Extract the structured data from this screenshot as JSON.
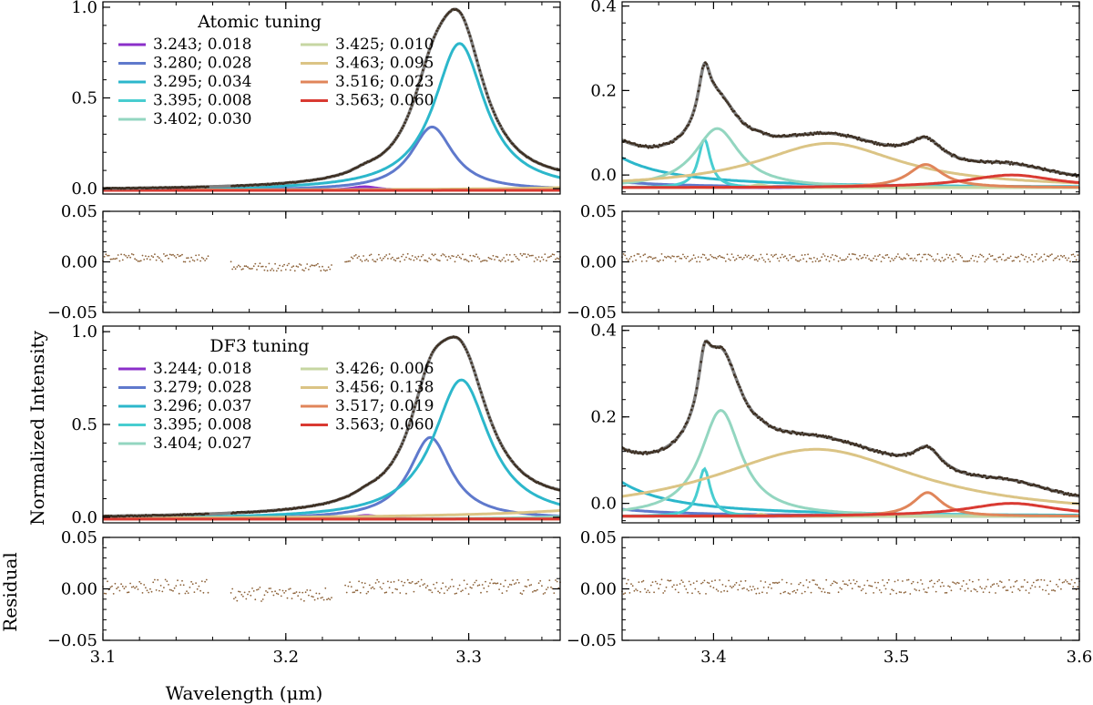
{
  "chart_data": {
    "type": "line",
    "xlabel": "Wavelength (μm)",
    "ylabel": "Normalized Intensity",
    "residual_ylabel": "Residual",
    "x_ranges": {
      "left": [
        3.1,
        3.35
      ],
      "right": [
        3.35,
        3.6
      ]
    },
    "x_ticks": {
      "left": [
        3.1,
        3.2,
        3.3
      ],
      "left_labels": [
        "3.1",
        "3.2",
        "3.3"
      ],
      "right": [
        3.4,
        3.5,
        3.6
      ],
      "right_labels": [
        "3.4",
        "3.5",
        "3.6"
      ]
    },
    "residual_ylim": [
      -0.05,
      0.05
    ],
    "residual_ticks": [
      -0.05,
      0.0,
      0.05
    ],
    "residual_tick_labels": [
      "−0.05",
      "0.00",
      "0.05"
    ],
    "rows": [
      {
        "title": "Atomic tuning",
        "ylim_left": [
          -0.03,
          1.03
        ],
        "ylim_right": [
          -0.045,
          0.41
        ],
        "yticks_left": [
          0.0,
          0.5,
          1.0
        ],
        "yticks_left_labels": [
          "0.0",
          "0.5",
          "1.0"
        ],
        "yticks_right": [
          0.0,
          0.2,
          0.4
        ],
        "yticks_right_labels": [
          "0.0",
          "0.2",
          "0.4"
        ],
        "baseline_left": -0.01,
        "baseline_right": -0.03,
        "residual_level": 0.004,
        "residual_noise": 0.004,
        "components": [
          {
            "label": "3.243; 0.018",
            "center": 3.243,
            "fwhm": 0.018,
            "amp": 0.02,
            "color": "#8b2fc9"
          },
          {
            "label": "3.280; 0.028",
            "center": 3.28,
            "fwhm": 0.028,
            "amp": 0.35,
            "color": "#5f79cc"
          },
          {
            "label": "3.295; 0.034",
            "center": 3.295,
            "fwhm": 0.034,
            "amp": 0.81,
            "color": "#2cb7cb"
          },
          {
            "label": "3.395; 0.008",
            "center": 3.395,
            "fwhm": 0.008,
            "amp": 0.115,
            "color": "#48cdd0"
          },
          {
            "label": "3.402; 0.030",
            "center": 3.402,
            "fwhm": 0.03,
            "amp": 0.14,
            "color": "#93d6c0"
          },
          {
            "label": "3.425; 0.010",
            "center": 3.425,
            "fwhm": 0.01,
            "amp": 0.007,
            "color": "#c6d6a2"
          },
          {
            "label": "3.463; 0.095",
            "center": 3.463,
            "fwhm": 0.095,
            "amp": 0.105,
            "color": "#dbc485"
          },
          {
            "label": "3.516; 0.023",
            "center": 3.516,
            "fwhm": 0.023,
            "amp": 0.055,
            "color": "#e0855a"
          },
          {
            "label": "3.563; 0.060",
            "center": 3.563,
            "fwhm": 0.06,
            "amp": 0.03,
            "color": "#d93a32"
          }
        ]
      },
      {
        "title": "DF3 tuning",
        "ylim_left": [
          -0.03,
          1.03
        ],
        "ylim_right": [
          -0.045,
          0.41
        ],
        "yticks_left": [
          0.0,
          0.5,
          1.0
        ],
        "yticks_left_labels": [
          "0.0",
          "0.5",
          "1.0"
        ],
        "yticks_right": [
          0.0,
          0.2,
          0.4
        ],
        "yticks_right_labels": [
          "0.0",
          "0.2",
          "0.4"
        ],
        "baseline_left": -0.01,
        "baseline_right": -0.03,
        "residual_level": 0.002,
        "residual_noise": 0.007,
        "components": [
          {
            "label": "3.244; 0.018",
            "center": 3.244,
            "fwhm": 0.018,
            "amp": 0.02,
            "color": "#8b2fc9"
          },
          {
            "label": "3.279; 0.028",
            "center": 3.279,
            "fwhm": 0.028,
            "amp": 0.44,
            "color": "#5f79cc"
          },
          {
            "label": "3.296; 0.037",
            "center": 3.296,
            "fwhm": 0.037,
            "amp": 0.75,
            "color": "#2cb7cb"
          },
          {
            "label": "3.395; 0.008",
            "center": 3.395,
            "fwhm": 0.008,
            "amp": 0.11,
            "color": "#48cdd0"
          },
          {
            "label": "3.404; 0.027",
            "center": 3.404,
            "fwhm": 0.027,
            "amp": 0.245,
            "color": "#93d6c0"
          },
          {
            "label": "3.426; 0.006",
            "center": 3.426,
            "fwhm": 0.006,
            "amp": 0.005,
            "color": "#c6d6a2"
          },
          {
            "label": "3.456; 0.138",
            "center": 3.456,
            "fwhm": 0.138,
            "amp": 0.155,
            "color": "#dbc485"
          },
          {
            "label": "3.517; 0.019",
            "center": 3.517,
            "fwhm": 0.019,
            "amp": 0.055,
            "color": "#e0855a"
          },
          {
            "label": "3.563; 0.060",
            "center": 3.563,
            "fwhm": 0.06,
            "amp": 0.03,
            "color": "#d93a32"
          }
        ]
      }
    ],
    "styles": {
      "model_color": "#808080",
      "data_color": "#3d2f22",
      "residual_color": "#8c6239"
    }
  }
}
